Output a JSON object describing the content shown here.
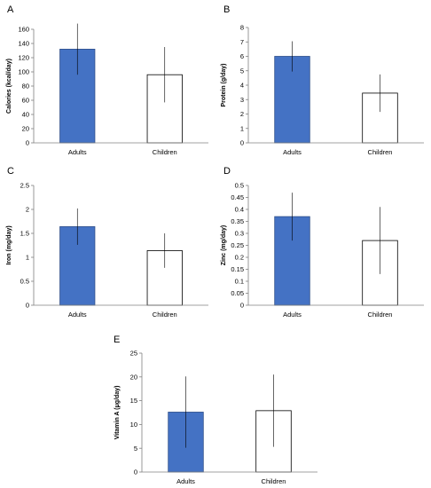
{
  "chart_data": [
    {
      "type": "bar",
      "panel_label": "A",
      "categories": [
        "Adults",
        "Children"
      ],
      "values": [
        132,
        96
      ],
      "errors": [
        36,
        39
      ],
      "ylabel": "Calories (kcal/day)",
      "ylim": [
        0,
        160
      ],
      "yticks": [
        "0",
        "20",
        "40",
        "60",
        "80",
        "100",
        "120",
        "140",
        "160"
      ],
      "grid": false,
      "bar_colors": [
        "#4472C4",
        "#FFFFFF"
      ]
    },
    {
      "type": "bar",
      "panel_label": "B",
      "categories": [
        "Adults",
        "Children"
      ],
      "values": [
        6.0,
        3.45
      ],
      "errors": [
        1.05,
        1.3
      ],
      "ylabel": "Protein (g/day)",
      "ylim": [
        0,
        8
      ],
      "yticks": [
        "0",
        "1",
        "2",
        "3",
        "4",
        "5",
        "6",
        "7",
        "8"
      ],
      "grid": false,
      "bar_colors": [
        "#4472C4",
        "#FFFFFF"
      ]
    },
    {
      "type": "bar",
      "panel_label": "C",
      "categories": [
        "Adults",
        "Children"
      ],
      "values": [
        1.64,
        1.14
      ],
      "errors": [
        0.38,
        0.36
      ],
      "ylabel": "Iron (mg/day)",
      "ylim": [
        0,
        2.5
      ],
      "yticks": [
        "0",
        "0.5",
        "1",
        "1.5",
        "2",
        "2.5"
      ],
      "grid": false,
      "bar_colors": [
        "#4472C4",
        "#FFFFFF"
      ]
    },
    {
      "type": "bar",
      "panel_label": "D",
      "categories": [
        "Adults",
        "Children"
      ],
      "values": [
        0.37,
        0.27
      ],
      "errors": [
        0.1,
        0.14
      ],
      "ylabel": "Zinc (mg/day)",
      "ylim": [
        0,
        0.5
      ],
      "yticks": [
        "0",
        "0.05",
        "0.1",
        "0.15",
        "0.2",
        "0.25",
        "0.3",
        "0.35",
        "0.4",
        "0.45",
        "0.5"
      ],
      "grid": false,
      "bar_colors": [
        "#4472C4",
        "#FFFFFF"
      ]
    },
    {
      "type": "bar",
      "panel_label": "E",
      "categories": [
        "Adults",
        "Children"
      ],
      "values": [
        12.6,
        12.9
      ],
      "errors": [
        7.5,
        7.6
      ],
      "ylabel": "Vitamin A (μg/day)",
      "ylim": [
        0,
        25
      ],
      "yticks": [
        "0",
        "5",
        "10",
        "15",
        "20",
        "25"
      ],
      "grid": false,
      "bar_colors": [
        "#4472C4",
        "#FFFFFF"
      ]
    }
  ]
}
